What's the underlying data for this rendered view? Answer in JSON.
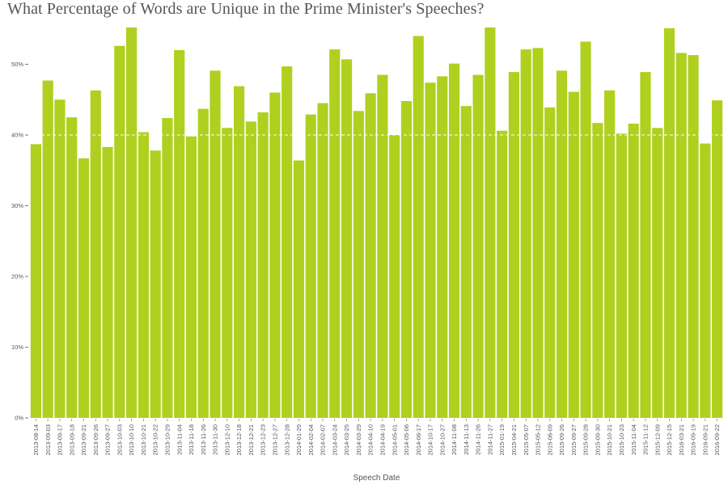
{
  "chart_data": {
    "type": "bar",
    "title": "What Percentage of Words are Unique in the Prime Minister's Speeches?",
    "xlabel": "Speech Date",
    "ylabel": "",
    "ylim": [
      0,
      56
    ],
    "yticks": [
      0,
      10,
      20,
      30,
      40,
      50
    ],
    "ytick_labels": [
      "0%",
      "10%",
      "20%",
      "30%",
      "40%",
      "50%"
    ],
    "reference_line": 40,
    "bar_color": "#afd01e",
    "reference_line_color": "#ffffff",
    "categories": [
      "2013-08-14",
      "2013-09-03",
      "2013-09-17",
      "2013-09-18",
      "2013-09-21",
      "2013-09-26",
      "2013-09-27",
      "2013-10-03",
      "2013-10-10",
      "2013-10-21",
      "2013-10-22",
      "2013-10-29",
      "2013-11-04",
      "2013-11-18",
      "2013-11-26",
      "2013-11-30",
      "2013-12-10",
      "2013-12-18",
      "2013-12-21",
      "2013-12-23",
      "2013-12-27",
      "2013-12-28",
      "2014-01-29",
      "2014-02-04",
      "2014-02-07",
      "2014-03-24",
      "2014-03-25",
      "2014-03-29",
      "2014-04-10",
      "2014-04-19",
      "2014-05-01",
      "2014-05-06",
      "2014-06-17",
      "2014-10-17",
      "2014-10-27",
      "2014-11-08",
      "2014-11-13",
      "2014-11-26",
      "2014-11-27",
      "2015-01-19",
      "2015-04-21",
      "2015-05-07",
      "2015-05-12",
      "2015-06-09",
      "2015-09-26",
      "2015-09-27",
      "2015-09-28",
      "2015-09-30",
      "2015-10-21",
      "2015-10-23",
      "2015-11-04",
      "2015-11-12",
      "2015-12-09",
      "2015-12-15",
      "2016-03-21",
      "2016-09-19",
      "2016-09-21",
      "2016-09-22"
    ],
    "values": [
      38.7,
      47.7,
      45.0,
      42.5,
      36.7,
      46.3,
      38.3,
      52.6,
      55.2,
      40.4,
      37.8,
      42.4,
      52.0,
      39.8,
      43.7,
      49.1,
      41.0,
      46.9,
      41.9,
      43.2,
      46.0,
      49.7,
      36.4,
      42.9,
      44.5,
      52.1,
      50.7,
      43.4,
      45.9,
      48.5,
      40.0,
      44.8,
      54.0,
      47.4,
      48.3,
      50.1,
      44.1,
      48.5,
      55.2,
      40.6,
      48.9,
      52.1,
      52.3,
      43.9,
      49.1,
      46.1,
      53.2,
      41.7,
      46.3,
      40.2,
      41.6,
      48.9,
      41.0,
      55.1,
      51.6,
      51.3,
      38.8,
      44.9
    ]
  }
}
